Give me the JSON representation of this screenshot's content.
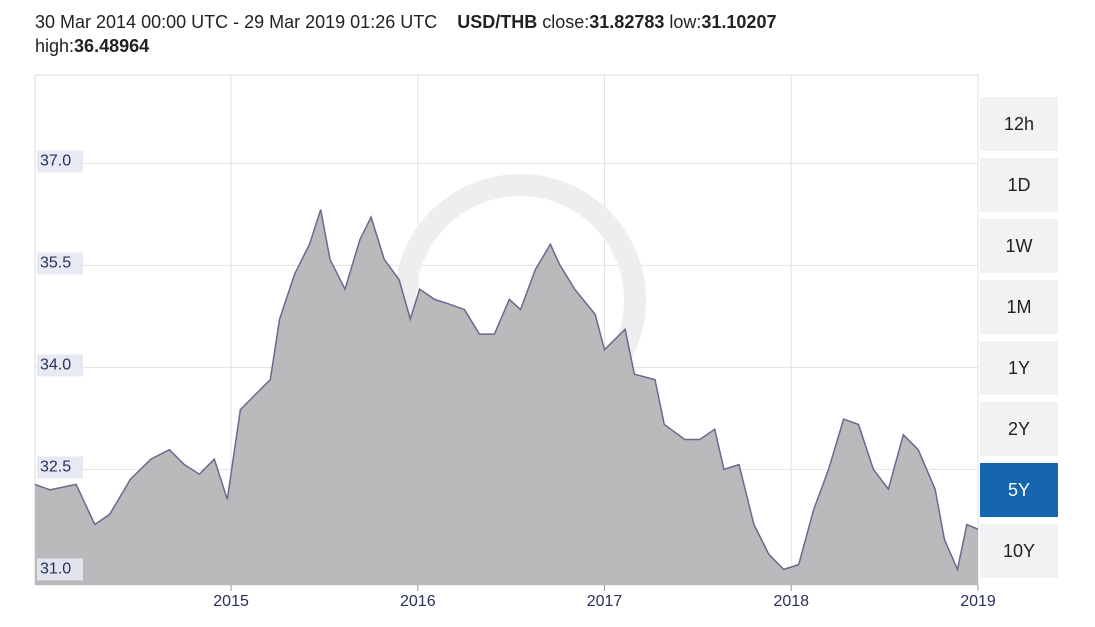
{
  "chart_data": {
    "type": "area",
    "title": "30 Mar 2014 00:00 UTC - 29 Mar 2019 01:26 UTC",
    "pair": "USD/THB",
    "stats": [
      {
        "label": "close:",
        "value": 31.82783
      },
      {
        "label": "low:",
        "value": 31.10207
      },
      {
        "label": "high:",
        "value": 36.48964
      }
    ],
    "x": [
      2013.95,
      2014.03,
      2014.17,
      2014.27,
      2014.35,
      2014.46,
      2014.57,
      2014.67,
      2014.75,
      2014.83,
      2014.91,
      2014.98,
      2015.05,
      2015.13,
      2015.21,
      2015.26,
      2015.34,
      2015.42,
      2015.48,
      2015.53,
      2015.61,
      2015.69,
      2015.75,
      2015.82,
      2015.9,
      2015.96,
      2016.01,
      2016.09,
      2016.17,
      2016.25,
      2016.33,
      2016.41,
      2016.49,
      2016.55,
      2016.63,
      2016.71,
      2016.76,
      2016.84,
      2016.95,
      2017.0,
      2017.11,
      2017.16,
      2017.27,
      2017.32,
      2017.43,
      2017.51,
      2017.59,
      2017.64,
      2017.72,
      2017.8,
      2017.88,
      2017.96,
      2018.04,
      2018.12,
      2018.2,
      2018.28,
      2018.36,
      2018.44,
      2018.52,
      2018.6,
      2018.68,
      2018.77,
      2018.82,
      2018.89,
      2018.94,
      2019.0
    ],
    "values": [
      32.28,
      32.2,
      32.28,
      31.69,
      31.84,
      32.35,
      32.65,
      32.79,
      32.57,
      32.43,
      32.65,
      32.06,
      33.38,
      33.6,
      33.82,
      34.71,
      35.37,
      35.81,
      36.32,
      35.59,
      35.15,
      35.88,
      36.21,
      35.59,
      35.29,
      34.71,
      35.15,
      35.0,
      34.93,
      34.85,
      34.49,
      34.49,
      35.0,
      34.85,
      35.44,
      35.81,
      35.51,
      35.15,
      34.78,
      34.26,
      34.56,
      33.9,
      33.82,
      33.16,
      32.94,
      32.94,
      33.09,
      32.5,
      32.57,
      31.69,
      31.25,
      31.03,
      31.1,
      31.91,
      32.5,
      33.24,
      33.16,
      32.5,
      32.21,
      33.01,
      32.79,
      32.21,
      31.47,
      31.03,
      31.69,
      31.62
    ],
    "color": "#b4b4b6",
    "line_color": "#666b8c",
    "xlim": [
      2013.95,
      2019.0
    ],
    "xticks": [
      2015,
      2016,
      2017,
      2018,
      2019
    ],
    "ylim": [
      30.8,
      38.3
    ],
    "yticks": [
      {
        "value": 31,
        "label": "31.0"
      },
      {
        "value": 32.5,
        "label": "32.5"
      },
      {
        "value": 34,
        "label": "34.0"
      },
      {
        "value": 35.5,
        "label": "35.5"
      },
      {
        "value": 37,
        "label": "37.0"
      }
    ],
    "grid": true,
    "ranges": [
      "12h",
      "1D",
      "1W",
      "1M",
      "1Y",
      "2Y",
      "5Y",
      "10Y"
    ],
    "selected_range": 6
  }
}
